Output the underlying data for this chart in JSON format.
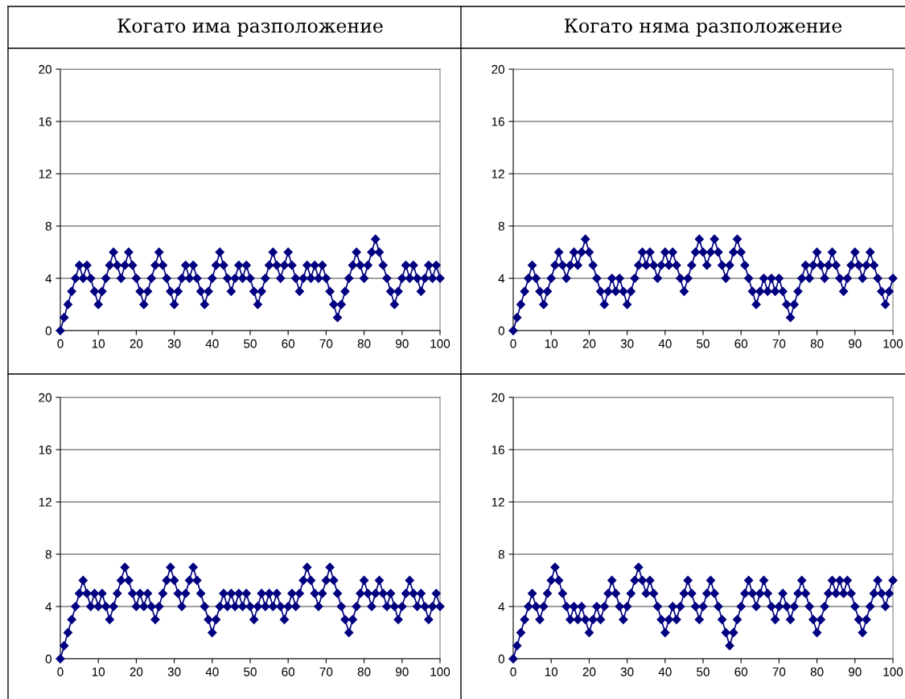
{
  "chart_data": [
    {
      "type": "line",
      "title": "Когато има разположение",
      "x": [
        0,
        1,
        2,
        3,
        4,
        5,
        6,
        7,
        8,
        9,
        10,
        11,
        12,
        13,
        14,
        15,
        16,
        17,
        18,
        19,
        20,
        21,
        22,
        23,
        24,
        25,
        26,
        27,
        28,
        29,
        30,
        31,
        32,
        33,
        34,
        35,
        36,
        37,
        38,
        39,
        40,
        41,
        42,
        43,
        44,
        45,
        46,
        47,
        48,
        49,
        50,
        51,
        52,
        53,
        54,
        55,
        56,
        57,
        58,
        59,
        60,
        61,
        62,
        63,
        64,
        65,
        66,
        67,
        68,
        69,
        70,
        71,
        72,
        73,
        74,
        75,
        76,
        77,
        78,
        79,
        80,
        81,
        82,
        83,
        84,
        85,
        86,
        87,
        88,
        89,
        90,
        91,
        92,
        93,
        94,
        95,
        96,
        97,
        98,
        99,
        100
      ],
      "series": [
        {
          "color": "#000080",
          "values": [
            0,
            1,
            2,
            3,
            4,
            5,
            4,
            5,
            4,
            3,
            2,
            3,
            4,
            5,
            6,
            5,
            4,
            5,
            6,
            5,
            4,
            3,
            2,
            3,
            4,
            5,
            6,
            5,
            4,
            3,
            2,
            3,
            4,
            5,
            4,
            5,
            4,
            3,
            2,
            3,
            4,
            5,
            6,
            5,
            4,
            3,
            4,
            5,
            4,
            5,
            4,
            3,
            2,
            3,
            4,
            5,
            6,
            5,
            4,
            5,
            6,
            5,
            4,
            3,
            4,
            5,
            4,
            5,
            4,
            5,
            4,
            3,
            2,
            1,
            2,
            3,
            4,
            5,
            6,
            5,
            4,
            5,
            6,
            7,
            6,
            5,
            4,
            3,
            2,
            3,
            4,
            5,
            4,
            5,
            4,
            3,
            4,
            5,
            4,
            5,
            4
          ]
        }
      ],
      "xlim": [
        0,
        100
      ],
      "ylim": [
        0,
        20
      ],
      "xticks": [
        0,
        10,
        20,
        30,
        40,
        50,
        60,
        70,
        80,
        90,
        100
      ],
      "yticks": [
        0,
        4,
        8,
        12,
        16,
        20
      ],
      "grid": "y",
      "marker": "diamond",
      "line_style": "solid"
    },
    {
      "type": "line",
      "title": "Когато няма разположение",
      "x": [
        0,
        1,
        2,
        3,
        4,
        5,
        6,
        7,
        8,
        9,
        10,
        11,
        12,
        13,
        14,
        15,
        16,
        17,
        18,
        19,
        20,
        21,
        22,
        23,
        24,
        25,
        26,
        27,
        28,
        29,
        30,
        31,
        32,
        33,
        34,
        35,
        36,
        37,
        38,
        39,
        40,
        41,
        42,
        43,
        44,
        45,
        46,
        47,
        48,
        49,
        50,
        51,
        52,
        53,
        54,
        55,
        56,
        57,
        58,
        59,
        60,
        61,
        62,
        63,
        64,
        65,
        66,
        67,
        68,
        69,
        70,
        71,
        72,
        73,
        74,
        75,
        76,
        77,
        78,
        79,
        80,
        81,
        82,
        83,
        84,
        85,
        86,
        87,
        88,
        89,
        90,
        91,
        92,
        93,
        94,
        95,
        96,
        97,
        98,
        99,
        100
      ],
      "series": [
        {
          "color": "#000080",
          "values": [
            0,
            1,
            2,
            3,
            4,
            5,
            4,
            3,
            2,
            3,
            4,
            5,
            6,
            5,
            4,
            5,
            6,
            5,
            6,
            7,
            6,
            5,
            4,
            3,
            2,
            3,
            4,
            3,
            4,
            3,
            2,
            3,
            4,
            5,
            6,
            5,
            6,
            5,
            4,
            5,
            6,
            5,
            6,
            5,
            4,
            3,
            4,
            5,
            6,
            7,
            6,
            5,
            6,
            7,
            6,
            5,
            4,
            5,
            6,
            7,
            6,
            5,
            4,
            3,
            2,
            3,
            4,
            3,
            4,
            3,
            4,
            3,
            2,
            1,
            2,
            3,
            4,
            5,
            4,
            5,
            6,
            5,
            4,
            5,
            6,
            5,
            4,
            3,
            4,
            5,
            6,
            5,
            4,
            5,
            6,
            5,
            4,
            3,
            2,
            3,
            4
          ]
        }
      ],
      "xlim": [
        0,
        100
      ],
      "ylim": [
        0,
        20
      ],
      "xticks": [
        0,
        10,
        20,
        30,
        40,
        50,
        60,
        70,
        80,
        90,
        100
      ],
      "yticks": [
        0,
        4,
        8,
        12,
        16,
        20
      ],
      "grid": "y",
      "marker": "diamond",
      "line_style": "solid"
    },
    {
      "type": "line",
      "x": [
        0,
        1,
        2,
        3,
        4,
        5,
        6,
        7,
        8,
        9,
        10,
        11,
        12,
        13,
        14,
        15,
        16,
        17,
        18,
        19,
        20,
        21,
        22,
        23,
        24,
        25,
        26,
        27,
        28,
        29,
        30,
        31,
        32,
        33,
        34,
        35,
        36,
        37,
        38,
        39,
        40,
        41,
        42,
        43,
        44,
        45,
        46,
        47,
        48,
        49,
        50,
        51,
        52,
        53,
        54,
        55,
        56,
        57,
        58,
        59,
        60,
        61,
        62,
        63,
        64,
        65,
        66,
        67,
        68,
        69,
        70,
        71,
        72,
        73,
        74,
        75,
        76,
        77,
        78,
        79,
        80,
        81,
        82,
        83,
        84,
        85,
        86,
        87,
        88,
        89,
        90,
        91,
        92,
        93,
        94,
        95,
        96,
        97,
        98,
        99,
        100
      ],
      "series": [
        {
          "color": "#000080",
          "values": [
            0,
            1,
            2,
            3,
            4,
            5,
            6,
            5,
            4,
            5,
            4,
            5,
            4,
            3,
            4,
            5,
            6,
            7,
            6,
            5,
            4,
            5,
            4,
            5,
            4,
            3,
            4,
            5,
            6,
            7,
            6,
            5,
            4,
            5,
            6,
            7,
            6,
            5,
            4,
            3,
            2,
            3,
            4,
            5,
            4,
            5,
            4,
            5,
            4,
            5,
            4,
            3,
            4,
            5,
            4,
            5,
            4,
            5,
            4,
            3,
            4,
            5,
            4,
            5,
            6,
            7,
            6,
            5,
            4,
            5,
            6,
            7,
            6,
            5,
            4,
            3,
            2,
            3,
            4,
            5,
            6,
            5,
            4,
            5,
            6,
            5,
            4,
            5,
            4,
            3,
            4,
            5,
            6,
            5,
            4,
            5,
            4,
            3,
            4,
            5,
            4
          ]
        }
      ],
      "xlim": [
        0,
        100
      ],
      "ylim": [
        0,
        20
      ],
      "xticks": [
        0,
        10,
        20,
        30,
        40,
        50,
        60,
        70,
        80,
        90,
        100
      ],
      "yticks": [
        0,
        4,
        8,
        12,
        16,
        20
      ],
      "grid": "y",
      "marker": "diamond",
      "line_style": "solid"
    },
    {
      "type": "line",
      "x": [
        0,
        1,
        2,
        3,
        4,
        5,
        6,
        7,
        8,
        9,
        10,
        11,
        12,
        13,
        14,
        15,
        16,
        17,
        18,
        19,
        20,
        21,
        22,
        23,
        24,
        25,
        26,
        27,
        28,
        29,
        30,
        31,
        32,
        33,
        34,
        35,
        36,
        37,
        38,
        39,
        40,
        41,
        42,
        43,
        44,
        45,
        46,
        47,
        48,
        49,
        50,
        51,
        52,
        53,
        54,
        55,
        56,
        57,
        58,
        59,
        60,
        61,
        62,
        63,
        64,
        65,
        66,
        67,
        68,
        69,
        70,
        71,
        72,
        73,
        74,
        75,
        76,
        77,
        78,
        79,
        80,
        81,
        82,
        83,
        84,
        85,
        86,
        87,
        88,
        89,
        90,
        91,
        92,
        93,
        94,
        95,
        96,
        97,
        98,
        99,
        100
      ],
      "series": [
        {
          "color": "#000080",
          "values": [
            0,
            1,
            2,
            3,
            4,
            5,
            4,
            3,
            4,
            5,
            6,
            7,
            6,
            5,
            4,
            3,
            4,
            3,
            4,
            3,
            2,
            3,
            4,
            3,
            4,
            5,
            6,
            5,
            4,
            3,
            4,
            5,
            6,
            7,
            6,
            5,
            6,
            5,
            4,
            3,
            2,
            3,
            4,
            3,
            4,
            5,
            6,
            5,
            4,
            3,
            4,
            5,
            6,
            5,
            4,
            3,
            2,
            1,
            2,
            3,
            4,
            5,
            6,
            5,
            4,
            5,
            6,
            5,
            4,
            3,
            4,
            5,
            4,
            3,
            4,
            5,
            6,
            5,
            4,
            3,
            2,
            3,
            4,
            5,
            6,
            5,
            6,
            5,
            6,
            5,
            4,
            3,
            2,
            3,
            4,
            5,
            6,
            5,
            4,
            5,
            6
          ]
        }
      ],
      "xlim": [
        0,
        100
      ],
      "ylim": [
        0,
        20
      ],
      "xticks": [
        0,
        10,
        20,
        30,
        40,
        50,
        60,
        70,
        80,
        90,
        100
      ],
      "yticks": [
        0,
        4,
        8,
        12,
        16,
        20
      ],
      "grid": "y",
      "marker": "diamond",
      "line_style": "solid"
    }
  ]
}
